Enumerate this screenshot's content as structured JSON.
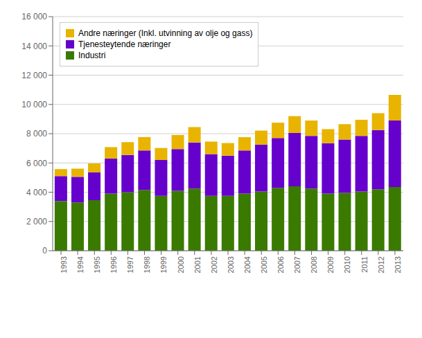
{
  "chart_data": {
    "type": "bar",
    "stacked": true,
    "grid": true,
    "legend": "upper left",
    "categories": [
      "1993",
      "1994",
      "1995",
      "1996",
      "1997",
      "1998",
      "1999",
      "2000",
      "2001",
      "2002",
      "2003",
      "2004",
      "2005",
      "2006",
      "2007",
      "2008",
      "2009",
      "2010",
      "2011",
      "2012",
      "2013"
    ],
    "series": [
      {
        "name": "Industri",
        "color": "#3a7a00",
        "values": [
          3400,
          3300,
          3450,
          3900,
          4000,
          4150,
          3750,
          4100,
          4250,
          3750,
          3750,
          3900,
          4050,
          4300,
          4400,
          4250,
          3900,
          3950,
          4050,
          4200,
          4350
        ]
      },
      {
        "name": "Tjenesteytende næringer",
        "color": "#6600cc",
        "values": [
          1700,
          1750,
          1900,
          2400,
          2550,
          2700,
          2450,
          2850,
          3150,
          2850,
          2750,
          2950,
          3200,
          3400,
          3650,
          3600,
          3450,
          3650,
          3800,
          4050,
          4550
        ]
      },
      {
        "name": "Andre næringer (Inkl. utvinning av olje og gass)",
        "color": "#e8b400",
        "values": [
          480,
          560,
          620,
          780,
          870,
          920,
          820,
          960,
          1050,
          860,
          860,
          910,
          960,
          1050,
          1150,
          1050,
          960,
          1050,
          1100,
          1150,
          1750
        ]
      }
    ],
    "ylim": [
      0,
      16000
    ],
    "yticks": [
      0,
      {
        "value": 2000,
        "label": "2 000"
      },
      {
        "value": 4000,
        "label": "4 000"
      },
      {
        "value": 6000,
        "label": "6 000"
      },
      {
        "value": 8000,
        "label": "8 000"
      },
      {
        "value": 10000,
        "label": "10 000"
      },
      {
        "value": 12000,
        "label": "12 000"
      },
      {
        "value": 14000,
        "label": "14 000"
      },
      {
        "value": 16000,
        "label": "16 000"
      }
    ]
  }
}
